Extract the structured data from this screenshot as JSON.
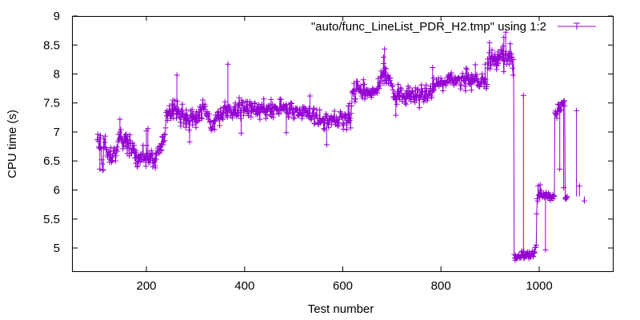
{
  "chart_data": {
    "type": "line",
    "xlabel": "Test number",
    "ylabel": "CPU time (s)",
    "xlim": [
      50,
      1150
    ],
    "ylim": [
      4.6,
      9
    ],
    "xticks": [
      200,
      400,
      600,
      800,
      1000
    ],
    "xtick_labels": [
      "200",
      "400",
      "600",
      "800",
      "1000"
    ],
    "yticks": [
      5,
      5.5,
      6,
      6.5,
      7,
      7.5,
      8,
      8.5,
      9
    ],
    "ytick_labels": [
      "5",
      "5.5",
      "6",
      "6.5",
      "7",
      "7.5",
      "8",
      "8.5",
      "9"
    ],
    "grid": false,
    "legend_position": "top-right",
    "series": [
      {
        "name": "\"auto/func_LineList_PDR_H2.tmp\" using 1:2",
        "color": "#9400d3",
        "marker": "plus",
        "x_start": 100,
        "x_step": 1,
        "values": [
          6.87,
          6.96,
          6.84,
          6.74,
          6.72,
          6.91,
          6.94,
          6.73,
          6.71,
          6.52,
          6.45,
          6.34,
          6.35,
          6.88,
          6.74,
          6.82,
          6.93,
          6.73,
          6.7,
          6.7,
          6.6,
          6.57,
          6.65,
          6.62,
          6.66,
          6.48,
          6.53,
          6.73,
          6.51,
          6.48,
          6.57,
          6.51,
          6.62,
          6.68,
          6.72,
          6.68,
          6.64,
          6.5,
          6.59,
          6.7,
          6.74,
          6.67,
          6.83,
          6.96,
          6.86,
          6.89,
          7.0,
          6.9,
          7.04,
          6.89,
          6.83,
          6.87,
          6.71,
          6.81,
          6.76,
          6.92,
          6.85,
          6.95,
          6.75,
          6.96,
          6.87,
          6.63,
          6.92,
          6.81,
          6.72,
          6.59,
          6.95,
          6.85,
          6.8,
          6.63,
          6.64,
          6.7,
          6.81,
          6.71,
          6.68,
          6.77,
          6.55,
          6.65,
          6.46,
          6.68,
          6.57,
          6.4,
          6.42,
          6.6,
          6.49,
          6.58,
          6.55,
          6.48,
          6.61,
          6.62,
          6.52,
          6.53,
          6.62,
          6.77,
          6.53,
          6.51,
          6.57,
          6.59,
          6.52,
          6.41,
          6.77,
          6.59,
          6.54,
          6.63,
          6.48,
          6.52,
          6.63,
          6.47,
          6.59,
          6.54,
          6.68,
          6.6,
          6.62,
          6.4,
          6.51,
          6.47,
          6.54,
          6.5,
          6.38,
          6.64,
          6.53,
          6.64,
          6.63,
          6.71,
          6.74,
          6.64,
          6.63,
          6.75,
          6.75,
          6.68,
          6.8,
          6.69,
          6.92,
          6.91,
          6.78,
          6.83,
          6.95,
          6.85,
          6.96,
          7.07,
          7.34,
          7.28,
          7.37,
          7.2,
          7.32,
          7.31,
          7.36,
          7.45,
          7.29,
          7.37,
          7.23,
          7.28,
          7.48,
          7.31,
          7.55,
          7.24,
          7.38,
          7.46,
          7.4,
          7.4,
          7.39,
          7.24,
          7.32,
          7.53,
          7.3,
          7.35,
          7.39,
          7.26,
          7.32,
          7.17,
          7.1,
          7.37,
          7.27,
          7.48,
          7.3,
          7.31,
          7.14,
          7.22,
          7.31,
          7.25,
          7.08,
          7.38,
          7.14,
          7.29,
          7.26,
          7.18,
          7.2,
          7.03,
          7.18,
          7.18,
          7.36,
          7.28,
          7.24,
          7.39,
          7.12,
          7.32,
          7.25,
          7.25,
          7.18,
          7.29,
          7.23,
          7.08,
          7.35,
          7.18,
          7.19,
          7.3,
          7.34,
          7.2,
          7.26,
          7.44,
          7.39,
          7.42,
          7.24,
          7.23,
          7.47,
          7.55,
          7.41,
          7.39,
          7.44,
          7.48,
          7.44,
          7.32,
          7.28,
          7.3,
          7.35,
          7.27,
          7.22,
          7.31,
          7.31,
          7.17,
          7.19,
          7.07,
          7.03,
          7.06,
          7.09,
          7.06,
          7.15,
          7.18,
          7.2,
          7.04,
          7.19,
          7.29,
          7.22,
          7.26,
          7.29,
          7.34,
          7.23,
          7.35,
          7.25,
          7.11,
          7.25,
          7.4,
          7.25,
          7.3,
          7.24,
          7.32,
          7.22,
          7.42,
          7.37,
          7.44,
          7.52,
          7.34,
          7.41,
          7.28,
          7.44,
          7.26,
          7.35,
          7.39,
          7.44,
          7.41,
          7.44,
          7.37,
          7.29,
          7.34,
          7.32,
          7.24,
          7.3,
          7.39,
          7.33,
          7.43,
          7.32,
          7.5,
          7.38,
          7.27,
          7.3,
          7.32,
          7.46,
          7.28,
          7.48,
          7.59,
          7.46,
          7.37,
          7.23,
          7.34,
          7.55,
          7.5,
          7.51,
          7.41,
          7.29,
          7.45,
          7.38,
          7.37,
          7.4,
          7.53,
          7.41,
          7.35,
          7.52,
          7.32,
          7.28,
          7.36,
          7.48,
          7.52,
          7.46,
          7.26,
          7.49,
          7.37,
          7.44,
          7.38,
          7.35,
          7.4,
          7.49,
          7.5,
          7.36,
          7.31,
          7.39,
          7.43,
          7.3,
          7.43,
          7.33,
          7.47,
          7.34,
          7.22,
          7.42,
          7.41,
          7.4,
          7.48,
          7.39,
          7.41,
          7.35,
          7.57,
          7.4,
          7.34,
          7.34,
          7.23,
          7.38,
          7.44,
          7.29,
          7.39,
          7.4,
          7.45,
          7.46,
          7.41,
          7.3,
          7.35,
          7.56,
          7.27,
          7.36,
          7.48,
          7.25,
          7.31,
          7.42,
          7.42,
          7.45,
          7.43,
          7.41,
          7.39,
          7.41,
          7.39,
          7.37,
          7.33,
          7.31,
          7.4,
          7.57,
          7.4,
          7.56,
          7.37,
          7.41,
          7.41,
          7.42,
          7.47,
          7.38,
          7.43,
          7.44,
          7.45,
          7.36,
          7.48,
          7.33,
          7.41,
          7.32,
          7.26,
          7.26,
          7.47,
          7.39,
          7.33,
          7.5,
          7.41,
          7.49,
          7.32,
          7.33,
          7.41,
          7.23,
          7.25,
          7.35,
          7.38,
          7.41,
          7.39,
          7.38,
          7.41,
          7.34,
          7.28,
          7.29,
          7.3,
          7.39,
          7.37,
          7.33,
          7.32,
          7.29,
          7.23,
          7.43,
          7.3,
          7.4,
          7.43,
          7.34,
          7.37,
          7.41,
          7.38,
          7.27,
          7.33,
          7.36,
          7.28,
          7.28,
          7.41,
          7.28,
          7.33,
          7.25,
          7.21,
          7.23,
          7.27,
          7.33,
          7.29,
          7.39,
          7.41,
          7.14,
          7.15,
          7.29,
          7.29,
          7.29,
          7.38,
          7.24,
          7.17,
          7.13,
          7.14,
          7.23,
          7.38,
          7.2,
          7.16,
          7.18,
          7.19,
          7.21,
          7.22,
          7.23,
          7.06,
          7.2,
          7.04,
          7.23,
          7.27,
          7.31,
          7.27,
          7.28,
          7.15,
          7.16,
          7.08,
          7.23,
          7.21,
          7.23,
          7.23,
          7.27,
          7.13,
          7.24,
          7.21,
          7.25,
          7.21,
          7.2,
          7.36,
          7.19,
          7.13,
          7.16,
          7.26,
          7.21,
          7.12,
          7.22,
          7.1,
          7.16,
          7.22,
          7.26,
          7.35,
          7.33,
          7.28,
          7.26,
          7.27,
          7.14,
          7.05,
          7.12,
          7.27,
          7.31,
          7.24,
          7.3,
          7.25,
          7.04,
          7.16,
          7.2,
          7.45,
          7.16,
          7.29,
          7.2,
          7.24,
          7.07,
          7.32,
          7.45,
          7.68,
          7.7,
          7.71,
          7.66,
          7.84,
          7.57,
          7.52,
          7.57,
          7.73,
          7.87,
          7.74,
          7.87,
          7.81,
          7.76,
          7.7,
          7.74,
          7.73,
          7.69,
          7.8,
          7.68,
          7.62,
          7.59,
          7.66,
          7.9,
          7.71,
          7.82,
          7.57,
          7.65,
          7.72,
          7.63,
          7.73,
          7.72,
          7.63,
          7.69,
          7.72,
          7.68,
          7.64,
          7.66,
          7.71,
          7.6,
          7.63,
          7.75,
          7.67,
          7.73,
          7.69,
          7.69,
          7.73,
          7.67,
          7.71,
          7.69,
          7.72,
          7.67,
          7.75,
          7.92,
          7.78,
          7.75,
          7.85,
          7.81,
          7.94,
          8.05,
          7.96,
          7.88,
          8.02,
          7.98,
          8.18,
          7.84,
          8.03,
          8.1,
          7.89,
          8.09,
          7.84,
          7.89,
          7.96,
          7.98,
          7.84,
          7.93,
          7.93,
          7.89,
          7.93,
          7.83,
          7.83,
          7.8,
          7.79,
          7.73,
          7.61,
          7.58,
          7.67,
          7.61,
          7.56,
          7.63,
          7.56,
          7.48,
          7.7,
          7.61,
          7.82,
          7.6,
          7.67,
          7.56,
          7.71,
          7.76,
          7.74,
          7.63,
          7.53,
          7.62,
          7.62,
          7.61,
          7.62,
          7.57,
          7.5,
          7.67,
          7.48,
          7.71,
          7.61,
          7.61,
          7.79,
          7.62,
          7.57,
          7.76,
          7.6,
          7.67,
          7.53,
          7.66,
          7.7,
          7.71,
          7.61,
          7.66,
          7.56,
          7.58,
          7.51,
          7.76,
          7.63,
          7.55,
          7.62,
          7.72,
          7.74,
          7.6,
          7.6,
          7.42,
          7.69,
          7.6,
          7.62,
          7.81,
          7.64,
          7.69,
          7.7,
          7.56,
          7.52,
          7.58,
          7.75,
          7.57,
          7.61,
          7.81,
          7.71,
          7.54,
          7.58,
          7.64,
          7.71,
          7.66,
          7.62,
          7.75,
          7.79,
          7.62,
          7.59,
          7.69,
          7.83,
          7.71,
          7.93,
          7.73,
          7.8,
          7.79,
          7.78,
          7.83,
          7.9,
          7.83,
          7.83,
          7.83,
          7.93,
          7.79,
          7.83,
          7.85,
          7.82,
          7.93,
          7.87,
          7.87,
          7.81,
          7.71,
          7.84,
          7.84,
          7.85,
          7.89,
          7.85,
          7.8,
          7.84,
          7.88,
          7.95,
          7.86,
          7.98,
          7.95,
          7.88,
          7.97,
          7.85,
          7.99,
          8.02,
          7.91,
          7.89,
          7.88,
          7.92,
          7.81,
          7.83,
          7.92,
          7.95,
          7.85,
          7.84,
          7.88,
          7.9,
          7.91,
          7.93,
          7.94,
          7.92,
          7.91,
          7.81,
          7.74,
          7.81,
          7.93,
          7.93,
          8.01,
          7.96,
          7.89,
          7.87,
          7.94,
          7.79,
          7.71,
          8.1,
          7.91,
          8.08,
          7.93,
          7.91,
          7.99,
          7.83,
          7.84,
          7.94,
          7.82,
          7.86,
          7.99,
          7.92,
          7.86,
          7.97,
          7.87,
          7.9,
          7.87,
          7.92,
          7.89,
          7.96,
          7.93,
          7.99,
          7.81,
          7.88,
          7.88,
          7.79,
          7.83,
          7.78,
          7.83,
          7.83,
          7.91,
          7.84,
          8.0,
          7.93,
          7.91,
          7.86,
          7.78,
          7.92,
          7.86,
          7.9,
          7.75,
          7.78,
          7.82,
          8.26,
          8.1,
          8.19,
          8.37,
          8.54,
          8.09,
          8.27,
          8.15,
          8.3,
          8.41,
          8.22,
          8.27,
          8.17,
          8.27,
          8.34,
          8.17,
          8.3,
          8.22,
          8.08,
          8.28,
          8.15,
          8.38,
          8.18,
          8.3,
          8.34,
          8.24,
          8.29,
          8.41,
          8.42,
          8.35,
          8.27,
          8.48,
          8.26,
          8.04,
          8.22,
          8.24,
          8.33,
          8.39,
          8.31,
          8.17,
          8.22,
          8.31,
          8.27,
          8.36,
          8.17,
          8.31,
          8.52,
          8.22,
          8.22,
          8.35,
          8.29,
          8.1,
          7.98,
          8.25,
          4.89,
          4.83,
          4.79,
          4.87,
          4.82,
          4.84,
          4.82,
          4.85,
          4.85,
          4.87,
          4.88,
          4.83,
          4.84,
          4.85,
          4.83,
          4.93,
          4.94,
          4.88,
          4.87,
          4.83,
          4.94,
          4.83,
          4.86,
          4.88,
          4.85,
          4.89,
          4.87,
          4.93,
          4.91,
          4.86,
          4.82,
          4.93,
          4.85,
          4.85,
          4.85,
          4.91,
          4.89,
          4.94,
          4.86,
          4.85,
          4.94,
          4.91,
          4.93,
          5.01,
          5.01,
          5.05,
          5.59,
          5.85,
          5.81,
          6.07,
          5.91,
          5.92,
          5.87,
          6.09,
          5.91,
          5.99,
          5.92,
          5.9,
          5.88,
          5.94,
          5.9,
          5.92,
          5.87,
          5.92,
          5.88,
          5.96,
          5.91,
          5.9,
          5.87,
          5.89,
          5.95,
          5.85,
          5.91,
          5.92,
          5.82,
          5.88,
          5.86,
          5.86,
          5.89,
          5.92,
          5.85,
          5.89,
          5.9,
          7.33,
          7.36,
          7.31,
          7.29,
          7.24,
          7.36,
          7.36,
          7.35,
          7.47,
          7.41,
          7.36,
          7.48,
          7.38,
          7.38,
          7.51,
          7.5,
          7.47,
          7.5,
          7.52,
          7.54,
          7.45,
          5.86,
          5.84,
          5.87,
          5.86,
          5.89
        ],
        "outliers": [
          [
            105,
            6.36
          ],
          [
            146,
            7.22
          ],
          [
            200,
            7.02
          ],
          [
            203,
            7.06
          ],
          [
            218,
            6.42
          ],
          [
            258,
            7.54
          ],
          [
            262,
            7.98
          ],
          [
            288,
            6.83
          ],
          [
            366,
            8.17
          ],
          [
            393,
            6.98
          ],
          [
            485,
            6.99
          ],
          [
            533,
            7.62
          ],
          [
            567,
            6.78
          ],
          [
            614,
            7.49
          ],
          [
            683,
            8.29
          ],
          [
            685,
            8.43
          ],
          [
            708,
            7.29
          ],
          [
            783,
            8.11
          ],
          [
            862,
            7.72
          ],
          [
            870,
            8.16
          ],
          [
            890,
            8.17
          ],
          [
            928,
            8.63
          ],
          [
            932,
            8.72
          ],
          [
            968,
            7.63
          ],
          [
            1013,
            4.97
          ],
          [
            1042,
            6.36
          ],
          [
            1038,
            7.48
          ],
          [
            1050,
            6.04
          ],
          [
            1076,
            7.37
          ],
          [
            1082,
            6.07
          ],
          [
            1092,
            5.81
          ]
        ]
      }
    ]
  }
}
